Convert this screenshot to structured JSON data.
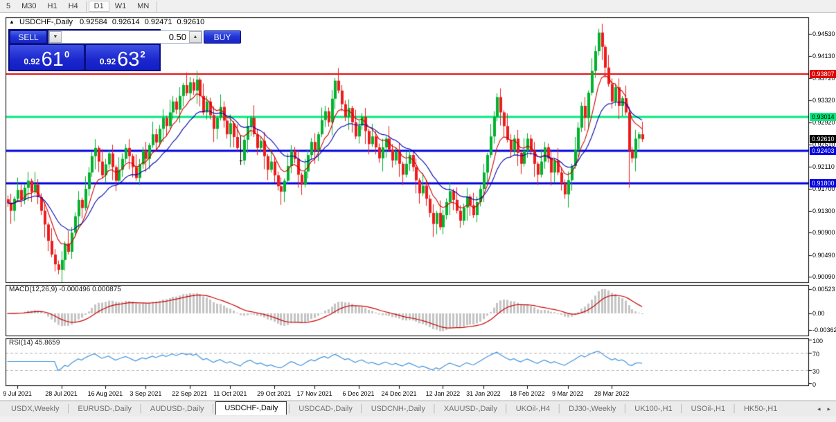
{
  "toolbar": {
    "timeframes": [
      "5",
      "M30",
      "H1",
      "H4",
      "D1",
      "W1",
      "MN"
    ],
    "active": "D1"
  },
  "chart_header": {
    "collapse_icon": "▲",
    "symbol": "USDCHF-,Daily",
    "open": "0.92584",
    "high": "0.92614",
    "low": "0.92471",
    "close": "0.92610"
  },
  "trade_panel": {
    "sell_label": "SELL",
    "buy_label": "BUY",
    "volume": "0.50",
    "down_glyph": "▼",
    "up_glyph": "▲",
    "sell_price": {
      "prefix": "0.92",
      "big": "61",
      "sup": "0"
    },
    "buy_price": {
      "prefix": "0.92",
      "big": "63",
      "sup": "2"
    }
  },
  "macd_label": "MACD(12,26,9) -0.000496 0.000875",
  "rsi_label": "RSI(14) 45.8659",
  "price_axis": {
    "badges": [
      {
        "value": "0.93807",
        "bg": "#e00000",
        "fg": "#ffffff"
      },
      {
        "value": "0.93014",
        "bg": "#00e97e",
        "fg": "#000000"
      },
      {
        "value": "0.92610",
        "bg": "#000000",
        "fg": "#ffffff"
      },
      {
        "value": "0.92403",
        "bg": "#0000e0",
        "fg": "#ffffff"
      },
      {
        "value": "0.91800",
        "bg": "#0000e0",
        "fg": "#ffffff"
      }
    ]
  },
  "tabs": {
    "items": [
      "USDX,Weekly",
      "EURUSD-,Daily",
      "AUDUSD-,Daily",
      "USDCHF-,Daily",
      "USDCAD-,Daily",
      "USDCNH-,Daily",
      "XAUUSD-,Daily",
      "UKOil-,H4",
      "DJ30-,Weekly",
      "UK100-,H1",
      "USOil-,H1",
      "HK50-,H1"
    ],
    "active": "USDCHF-,Daily",
    "nav_left": "◂",
    "nav_right": "▸"
  },
  "chart_data": {
    "type": "candlestick",
    "symbol": "USDCHF",
    "timeframe": "Daily",
    "ylim": [
      0.8998,
      0.9484
    ],
    "y_ticks": [
      "0.94530",
      "0.94130",
      "0.93720",
      "0.93320",
      "0.92920",
      "0.92510",
      "0.92110",
      "0.91700",
      "0.91300",
      "0.90900",
      "0.90490",
      "0.90090"
    ],
    "x_dates": [
      {
        "label": "9 Jul 2021",
        "i": 3
      },
      {
        "label": "28 Jul 2021",
        "i": 16
      },
      {
        "label": "16 Aug 2021",
        "i": 29
      },
      {
        "label": "3 Sep 2021",
        "i": 41
      },
      {
        "label": "22 Sep 2021",
        "i": 54
      },
      {
        "label": "11 Oct 2021",
        "i": 66
      },
      {
        "label": "29 Oct 2021",
        "i": 79
      },
      {
        "label": "17 Nov 2021",
        "i": 91
      },
      {
        "label": "6 Dec 2021",
        "i": 104
      },
      {
        "label": "24 Dec 2021",
        "i": 116
      },
      {
        "label": "12 Jan 2022",
        "i": 129
      },
      {
        "label": "31 Jan 2022",
        "i": 141
      },
      {
        "label": "18 Feb 2022",
        "i": 154
      },
      {
        "label": "9 Mar 2022",
        "i": 166
      },
      {
        "label": "28 Mar 2022",
        "i": 179
      }
    ],
    "closes": [
      0.9145,
      0.913,
      0.9152,
      0.9168,
      0.915,
      0.9172,
      0.9185,
      0.9165,
      0.9178,
      0.9155,
      0.913,
      0.9105,
      0.9075,
      0.905,
      0.9032,
      0.9022,
      0.904,
      0.907,
      0.9055,
      0.909,
      0.912,
      0.915,
      0.9135,
      0.917,
      0.92,
      0.923,
      0.9245,
      0.922,
      0.9195,
      0.9215,
      0.9235,
      0.921,
      0.9185,
      0.9205,
      0.9225,
      0.9245,
      0.923,
      0.921,
      0.919,
      0.9215,
      0.924,
      0.9225,
      0.925,
      0.927,
      0.9255,
      0.928,
      0.93,
      0.9285,
      0.931,
      0.933,
      0.9315,
      0.934,
      0.936,
      0.9345,
      0.9365,
      0.935,
      0.937,
      0.934,
      0.931,
      0.933,
      0.9305,
      0.928,
      0.93,
      0.932,
      0.9295,
      0.927,
      0.929,
      0.9265,
      0.9245,
      0.9222,
      0.926,
      0.9285,
      0.93,
      0.927,
      0.9245,
      0.9258,
      0.923,
      0.9205,
      0.922,
      0.9195,
      0.9175,
      0.9165,
      0.9185,
      0.9212,
      0.924,
      0.9225,
      0.9196,
      0.9178,
      0.9202,
      0.9232,
      0.9256,
      0.924,
      0.927,
      0.9296,
      0.9312,
      0.9292,
      0.9335,
      0.9368,
      0.935,
      0.9325,
      0.9302,
      0.9318,
      0.9292,
      0.9266,
      0.9286,
      0.9302,
      0.9276,
      0.9252,
      0.9266,
      0.9246,
      0.9226,
      0.9246,
      0.9262,
      0.9242,
      0.9222,
      0.9238,
      0.9216,
      0.9196,
      0.9216,
      0.9232,
      0.921,
      0.9186,
      0.9162,
      0.9176,
      0.9152,
      0.9126,
      0.9106,
      0.9126,
      0.91,
      0.9122,
      0.9146,
      0.9166,
      0.915,
      0.913,
      0.9112,
      0.9136,
      0.9156,
      0.914,
      0.9122,
      0.9146,
      0.917,
      0.92,
      0.9232,
      0.9266,
      0.9302,
      0.9338,
      0.931,
      0.9285,
      0.926,
      0.924,
      0.9262,
      0.9236,
      0.9216,
      0.924,
      0.9262,
      0.924,
      0.9216,
      0.9196,
      0.922,
      0.9246,
      0.9226,
      0.92,
      0.9222,
      0.92,
      0.918,
      0.916,
      0.9186,
      0.9212,
      0.9242,
      0.9282,
      0.9322,
      0.93,
      0.9346,
      0.9386,
      0.9422,
      0.9456,
      0.943,
      0.9392,
      0.9362,
      0.933,
      0.9356,
      0.9322,
      0.9336,
      0.931,
      0.924,
      0.9226,
      0.9262,
      0.927,
      0.9261
    ],
    "wick_up": [
      0.0007,
      0.0016,
      0.0004,
      0.0023,
      0.001
    ],
    "wick_down": [
      0.0019,
      0.0005,
      0.0013,
      0.0008,
      0.0024
    ],
    "doji": {
      "69": {
        "o": 0.9222,
        "c": 0.9222,
        "h": 0.9268,
        "l": 0.9214,
        "color": "#000000"
      }
    },
    "wick_overrides": {
      "15": {
        "l": 0.9018
      },
      "56": {
        "h": 0.9375
      },
      "97": {
        "h": 0.9373
      },
      "145": {
        "h": 0.9343
      },
      "175": {
        "h": 0.9462
      },
      "184": {
        "l": 0.9172
      }
    },
    "hlines": [
      {
        "price": 0.93807,
        "color": "#e00000",
        "width": 2
      },
      {
        "price": 0.93014,
        "color": "#00e97e",
        "width": 3
      },
      {
        "price": 0.92403,
        "color": "#0000e0",
        "width": 3
      },
      {
        "price": 0.918,
        "color": "#0000e0",
        "width": 3
      }
    ],
    "current_price": 0.9261,
    "ma": [
      {
        "type": "ema",
        "period": 8,
        "color": "#cc0000"
      },
      {
        "type": "ema",
        "period": 18,
        "color": "#0000b0"
      }
    ],
    "macd": {
      "params": [
        12,
        26,
        9
      ],
      "display_values": [
        -0.000496,
        0.000875
      ],
      "ylim": [
        -0.00495,
        0.00615
      ],
      "y_ticks": [
        "0.00523",
        "0.00",
        "-0.00362"
      ],
      "hist_color": "#c4c4c4",
      "signal_color": "#cc0000"
    },
    "rsi": {
      "period": 14,
      "display_value": 45.8659,
      "ylim": [
        -6.8,
        103.6
      ],
      "y_ticks": [
        "100",
        "70",
        "30",
        "0"
      ],
      "levels": [
        70,
        30
      ],
      "color": "#4093dd",
      "level_color": "#b4b4b4"
    },
    "bullish_color": "#00b22d",
    "bearish_color": "#ef1b1b"
  }
}
